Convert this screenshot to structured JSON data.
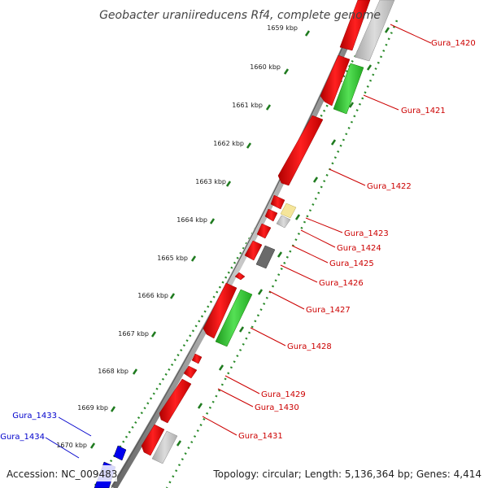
{
  "title": "Geobacter uraniireducens Rf4, complete genome",
  "accession": "Accession: NC_009483",
  "summary": "Topology: circular; Length: 5,136,364 bp; Genes: 4,414",
  "colors": {
    "forward_gene": "#ff0000",
    "cds_other": "#33cc33",
    "label_red": "#cc0000",
    "label_blue": "#0000cc",
    "tick_green": "#2a8a2a",
    "backbone": "#888888"
  },
  "kbp_ticks": [
    "1659 kbp",
    "1660 kbp",
    "1661 kbp",
    "1662 kbp",
    "1663 kbp",
    "1664 kbp",
    "1665 kbp",
    "1666 kbp",
    "1667 kbp",
    "1668 kbp",
    "1669 kbp",
    "1670 kbp"
  ],
  "gene_labels_right": [
    "Gura_1420",
    "Gura_1421",
    "Gura_1422",
    "Gura_1423",
    "Gura_1424",
    "Gura_1425",
    "Gura_1426",
    "Gura_1427",
    "Gura_1428",
    "Gura_1429",
    "Gura_1430",
    "Gura_1431"
  ],
  "gene_labels_left": [
    "Gura_1433",
    "Gura_1434"
  ]
}
